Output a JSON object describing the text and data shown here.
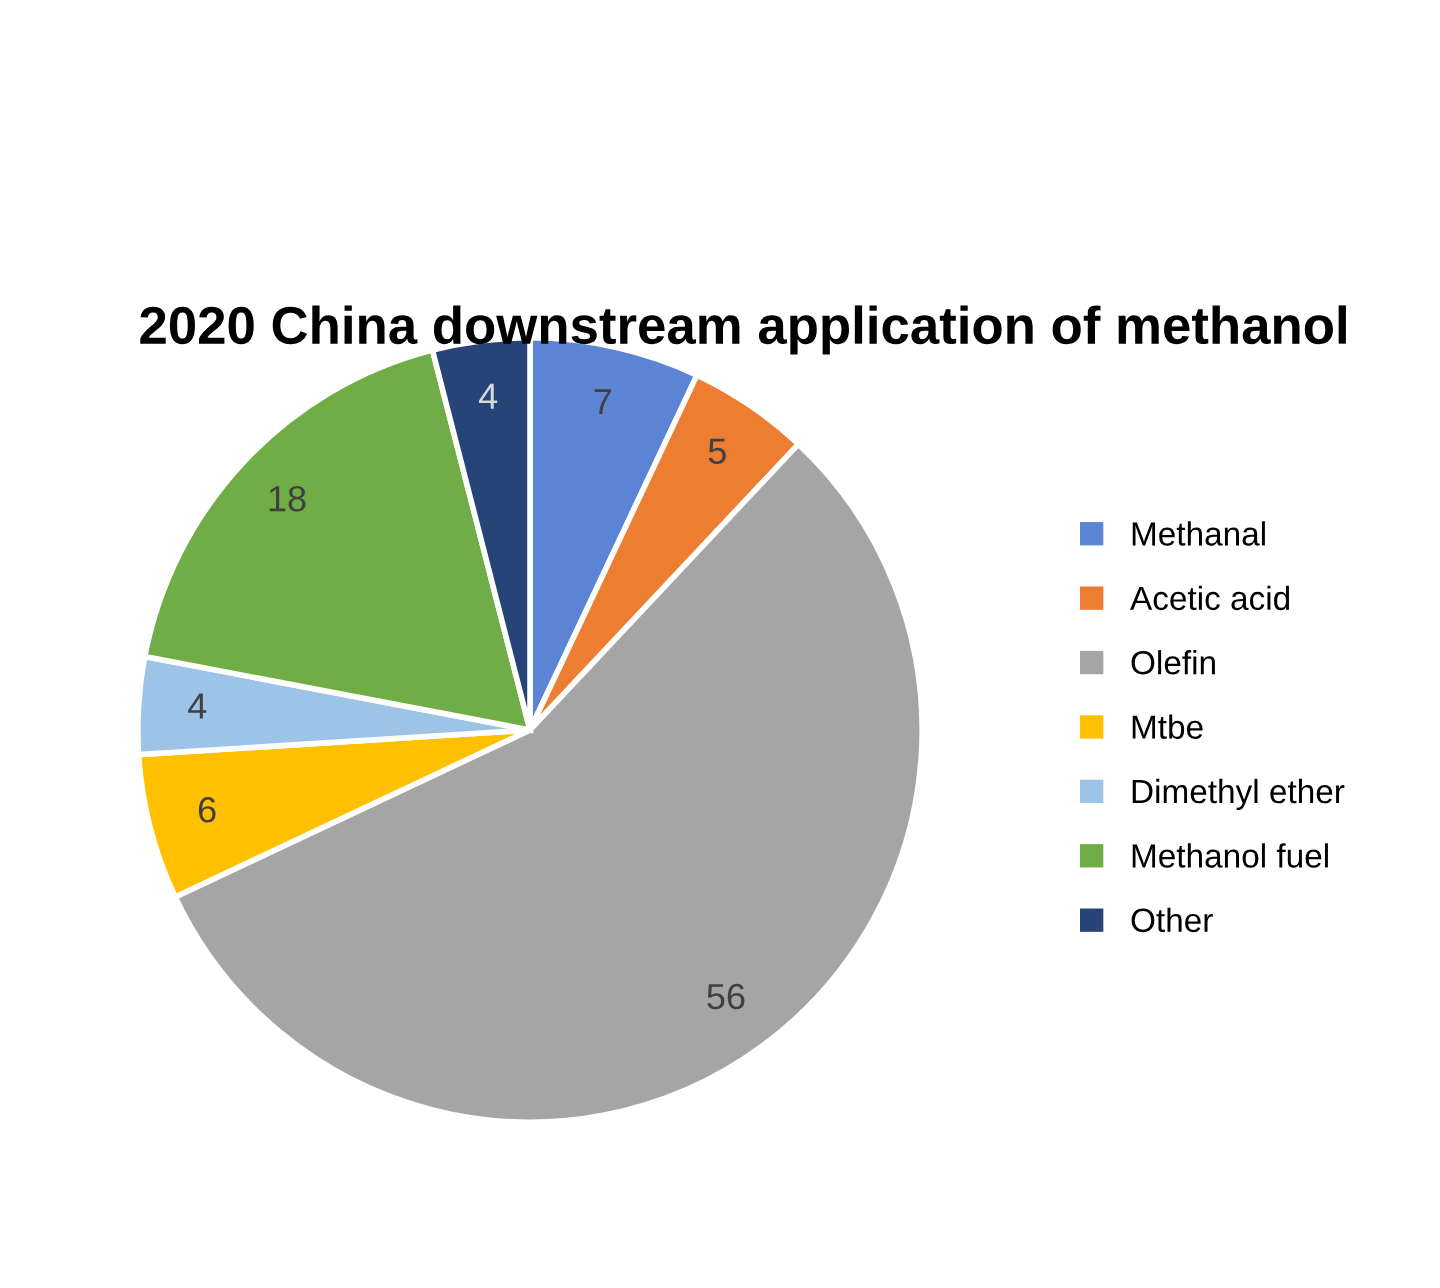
{
  "chart_data": {
    "type": "pie",
    "title": "2020 China downstream application of methanol",
    "categories": [
      "Methanal",
      "Acetic acid",
      "Olefin",
      "Mtbe",
      "Dimethyl ether",
      "Methanol fuel",
      "Other"
    ],
    "values": [
      7,
      5,
      56,
      6,
      4,
      18,
      4
    ],
    "colors": [
      "#5b84d4",
      "#ed7d31",
      "#a5a5a5",
      "#ffc000",
      "#9dc3e6",
      "#70ad47",
      "#264478"
    ],
    "data_labels": true,
    "legend": "right"
  }
}
